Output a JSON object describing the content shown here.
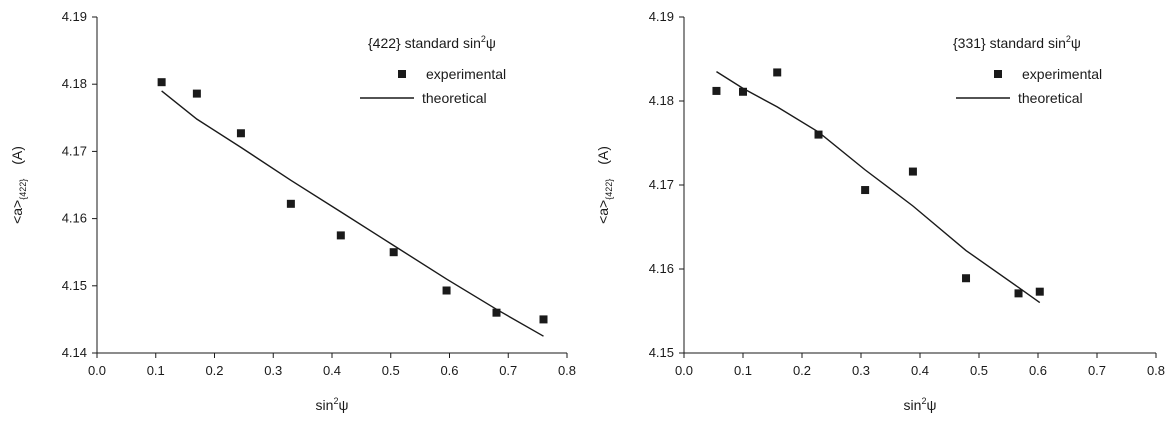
{
  "chart_data": [
    {
      "type": "scatter",
      "annotation": {
        "prefix": "{422} standard sin",
        "sup": "2",
        "suffix": "ψ"
      },
      "xlabel": {
        "prefix": "sin",
        "sup": "2",
        "suffix": "ψ"
      },
      "ylabel": {
        "prefix": "<a>",
        "sub": "{422}",
        "suffix": "(A)"
      },
      "xlim": [
        0.0,
        0.8
      ],
      "ylim": [
        4.14,
        4.19
      ],
      "xticks": [
        "0.0",
        "0.1",
        "0.2",
        "0.3",
        "0.4",
        "0.5",
        "0.6",
        "0.7",
        "0.8"
      ],
      "yticks": [
        "4.14",
        "4.15",
        "4.16",
        "4.17",
        "4.18",
        "4.19"
      ],
      "grid": false,
      "legend_position": "top-right",
      "series": [
        {
          "name": "experimental",
          "kind": "points",
          "x": [
            0.11,
            0.17,
            0.245,
            0.33,
            0.415,
            0.505,
            0.595,
            0.68,
            0.76
          ],
          "y": [
            4.1803,
            4.1786,
            4.1727,
            4.1622,
            4.1575,
            4.155,
            4.1493,
            4.146,
            4.145
          ]
        },
        {
          "name": "theoretical",
          "kind": "line",
          "x": [
            0.11,
            0.17,
            0.245,
            0.33,
            0.415,
            0.505,
            0.595,
            0.68,
            0.76
          ],
          "y": [
            4.179,
            4.1748,
            4.1706,
            4.1657,
            4.161,
            4.156,
            4.151,
            4.1465,
            4.1425
          ]
        }
      ]
    },
    {
      "type": "scatter",
      "annotation": {
        "prefix": "{331} standard sin",
        "sup": "2",
        "suffix": "ψ"
      },
      "xlabel": {
        "prefix": "sin",
        "sup": "2",
        "suffix": "ψ"
      },
      "ylabel": {
        "prefix": "<a>",
        "sub": "{422}",
        "suffix": "(A)"
      },
      "xlim": [
        0.0,
        0.8
      ],
      "ylim": [
        4.15,
        4.19
      ],
      "xticks": [
        "0.0",
        "0.1",
        "0.2",
        "0.3",
        "0.4",
        "0.5",
        "0.6",
        "0.7",
        "0.8"
      ],
      "yticks": [
        "4.15",
        "4.16",
        "4.17",
        "4.18",
        "4.19"
      ],
      "grid": false,
      "legend_position": "top-right",
      "series": [
        {
          "name": "experimental",
          "kind": "points",
          "x": [
            0.055,
            0.1,
            0.158,
            0.228,
            0.307,
            0.388,
            0.478,
            0.567,
            0.603
          ],
          "y": [
            4.1812,
            4.1811,
            4.1834,
            4.176,
            4.1694,
            4.1716,
            4.1589,
            4.1571,
            4.1573
          ]
        },
        {
          "name": "theoretical",
          "kind": "line",
          "x": [
            0.055,
            0.1,
            0.158,
            0.228,
            0.307,
            0.388,
            0.478,
            0.567,
            0.603
          ],
          "y": [
            4.1835,
            4.1815,
            4.1793,
            4.1763,
            4.1718,
            4.1675,
            4.1622,
            4.1578,
            4.156
          ]
        }
      ]
    }
  ]
}
